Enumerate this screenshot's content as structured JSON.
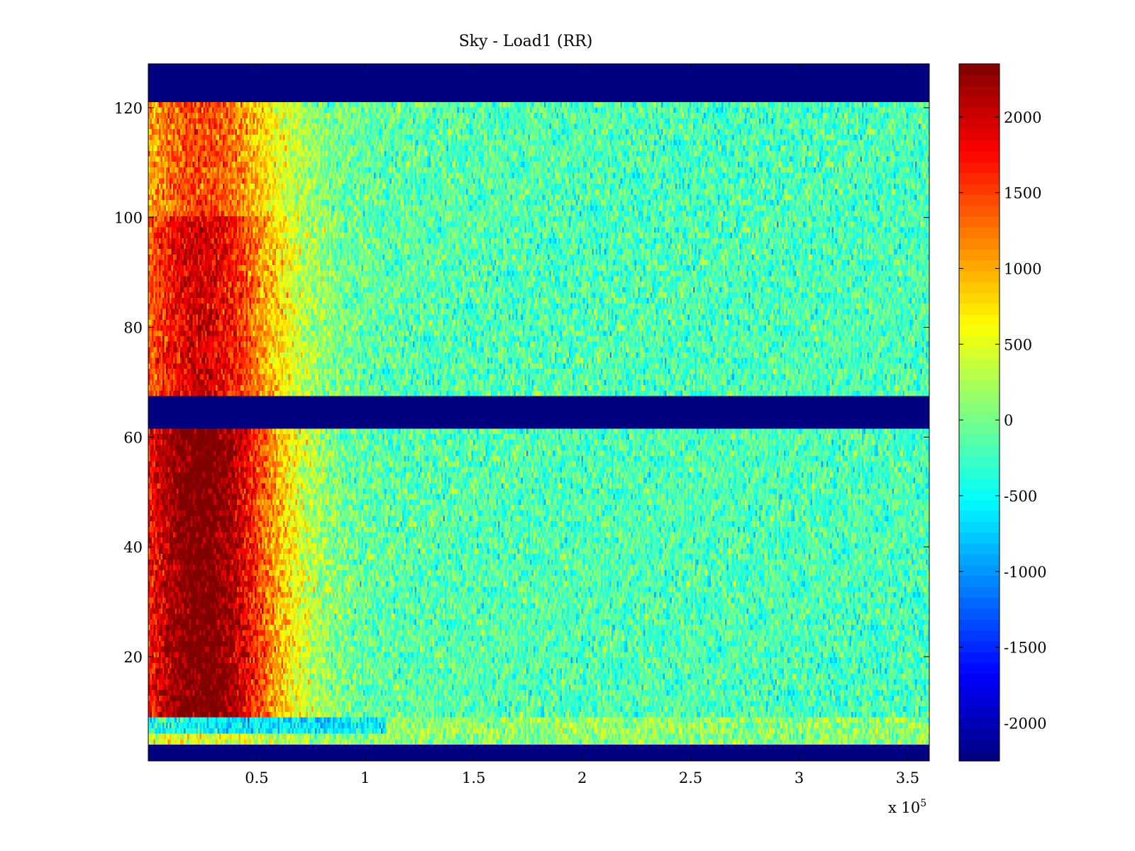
{
  "chart_data": {
    "type": "heatmap",
    "title": "Sky - Load1 (RR)",
    "xlabel": "",
    "ylabel": "",
    "x_multiplier_label": {
      "base": "x 10",
      "exponent": "5"
    },
    "xlim": [
      0,
      360000
    ],
    "ylim": [
      1,
      128
    ],
    "x_ticks": [
      50000,
      100000,
      150000,
      200000,
      250000,
      300000,
      350000
    ],
    "x_tick_labels": [
      "0.5",
      "1",
      "1.5",
      "2",
      "2.5",
      "3",
      "3.5"
    ],
    "y_ticks": [
      20,
      40,
      60,
      80,
      100,
      120
    ],
    "y_tick_labels": [
      "20",
      "40",
      "60",
      "80",
      "100",
      "120"
    ],
    "colormap": "jet",
    "clim": [
      -2250,
      2350
    ],
    "colorbar": {
      "ticks": [
        -2000,
        -1500,
        -1000,
        -500,
        0,
        500,
        1000,
        1500,
        2000
      ],
      "tick_labels": [
        "-2000",
        "-1500",
        "-1000",
        "-500",
        "0",
        "500",
        "1000",
        "1500",
        "2000"
      ],
      "placement": "right"
    },
    "grid": false,
    "masked_value": -2250,
    "masked_row_bands": [
      [
        1,
        4
      ],
      [
        61.5,
        67.5
      ],
      [
        121.5,
        128
      ]
    ],
    "description_of_field": {
      "hot_region_x_range": [
        0,
        50000
      ],
      "hot_region_peak_value": 2000,
      "background_value": -200,
      "low_row_band": [
        6,
        9
      ],
      "low_row_band_value": -600
    }
  },
  "colors": {
    "axes_background": "#00008f",
    "frame": "#000000",
    "text": "#000000"
  }
}
